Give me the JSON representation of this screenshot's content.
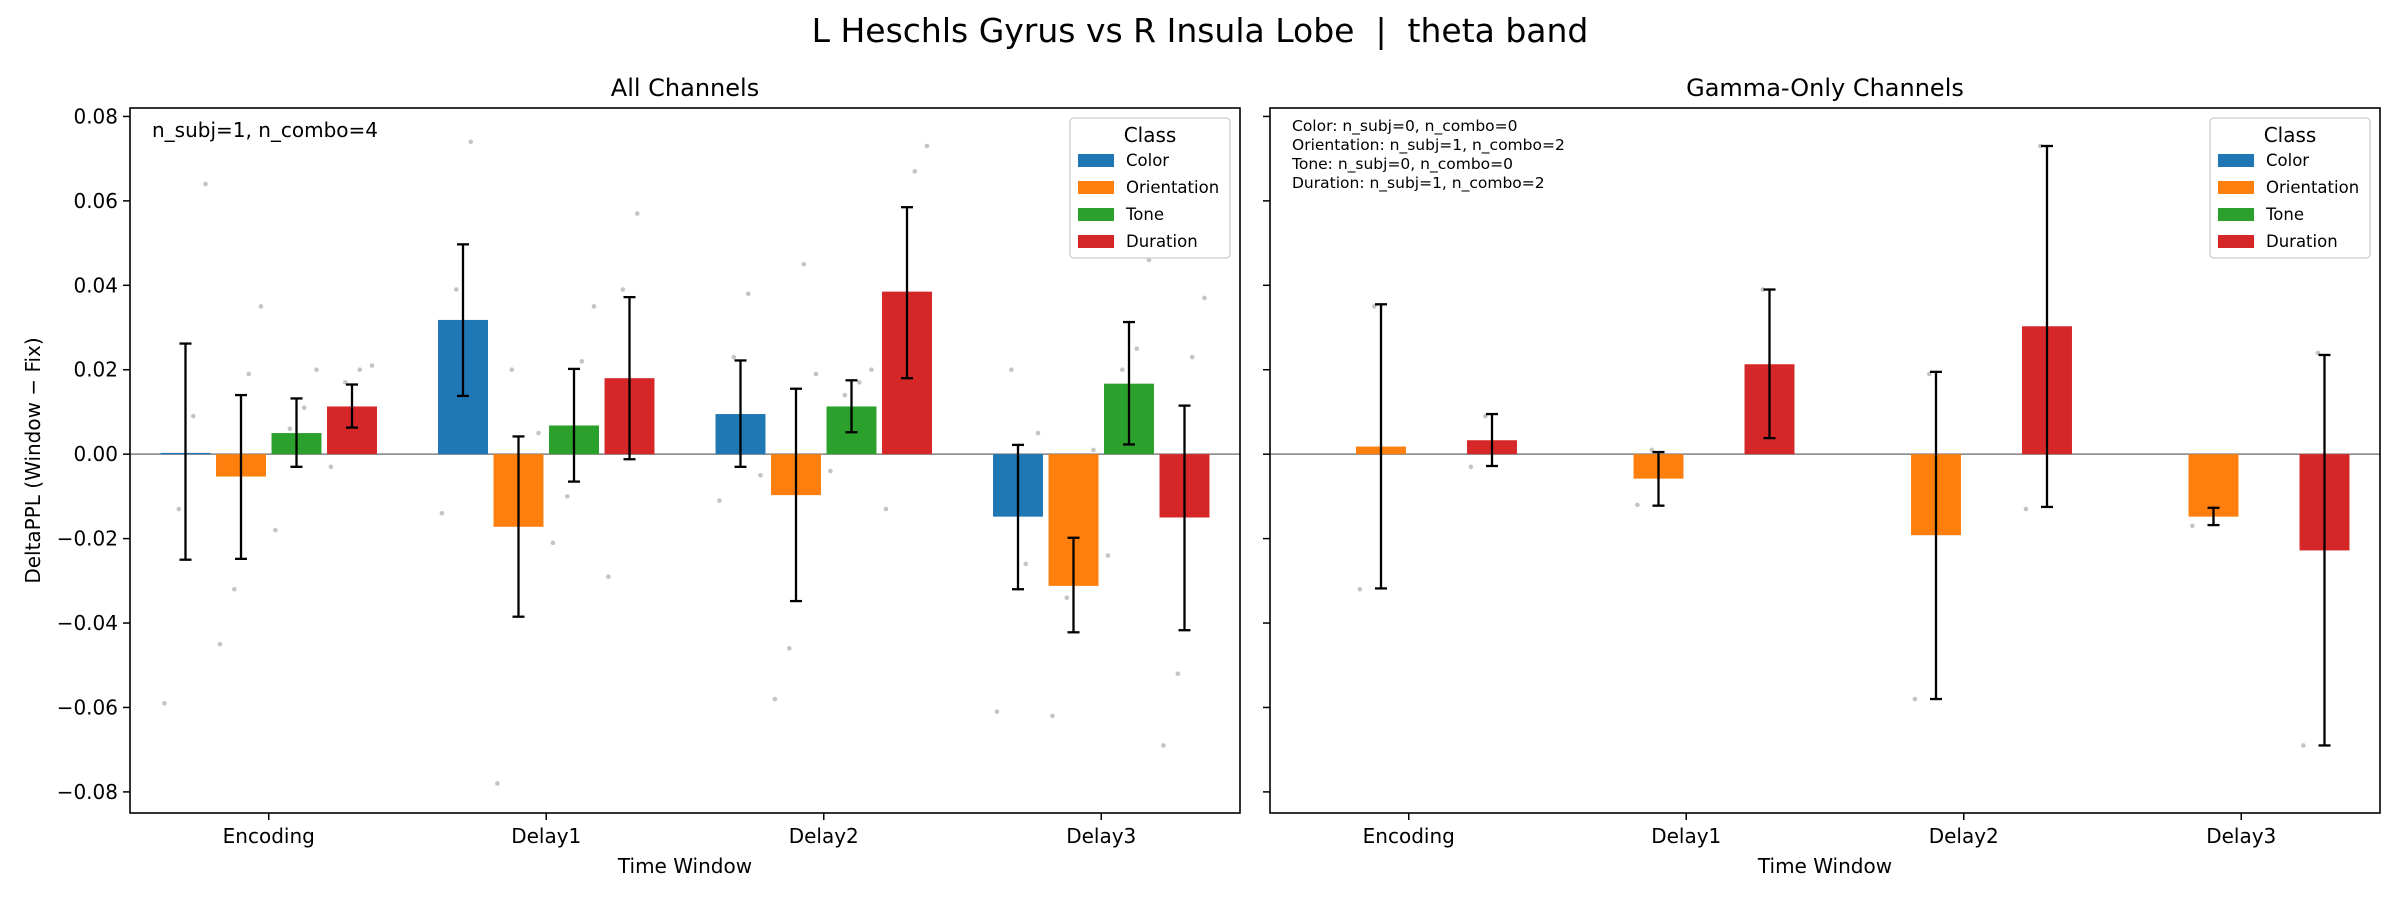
{
  "suptitle": "L Heschls Gyrus vs R Insula Lobe  |  theta band",
  "colors": {
    "Color": "#1f77b4",
    "Orientation": "#ff7f0e",
    "Tone": "#2ca02c",
    "Duration": "#d62728"
  },
  "chart_data": [
    {
      "type": "bar",
      "title": "All Channels",
      "xlabel": "Time Window",
      "ylabel": "DeltaPPL (Window − Fix)",
      "ylim": [
        -0.085,
        0.082
      ],
      "yticks": [
        -0.08,
        -0.06,
        -0.04,
        -0.02,
        0.0,
        0.02,
        0.04,
        0.06,
        0.08
      ],
      "ytick_labels": [
        "−0.08",
        "−0.06",
        "−0.04",
        "−0.02",
        "0.00",
        "0.02",
        "0.04",
        "0.06",
        "0.08"
      ],
      "categories": [
        "Encoding",
        "Delay1",
        "Delay2",
        "Delay3"
      ],
      "annotation": "n_subj=1, n_combo=4",
      "legend": {
        "title": "Class",
        "position": "top-right"
      },
      "series": [
        {
          "name": "Color",
          "values": [
            0.0003,
            0.0318,
            0.0095,
            -0.0148
          ],
          "err_low": [
            -0.025,
            0.0138,
            -0.003,
            -0.032
          ],
          "err_high": [
            0.0262,
            0.0497,
            0.0222,
            0.0022
          ]
        },
        {
          "name": "Orientation",
          "values": [
            -0.0053,
            -0.0172,
            -0.0097,
            -0.0312
          ],
          "err_low": [
            -0.0248,
            -0.0385,
            -0.0348,
            -0.0422
          ],
          "err_high": [
            0.014,
            0.0042,
            0.0155,
            -0.0198
          ]
        },
        {
          "name": "Tone",
          "values": [
            0.005,
            0.0068,
            0.0113,
            0.0167
          ],
          "err_low": [
            -0.003,
            -0.0065,
            0.0052,
            0.0023
          ],
          "err_high": [
            0.0132,
            0.0202,
            0.0175,
            0.0313
          ]
        },
        {
          "name": "Duration",
          "values": [
            0.0113,
            0.018,
            0.0385,
            -0.015
          ],
          "err_low": [
            0.0063,
            -0.0012,
            0.018,
            -0.0417
          ],
          "err_high": [
            0.0165,
            0.0372,
            0.0585,
            0.0115
          ]
        }
      ],
      "points": [
        [
          [
            -0.059,
            -0.013,
            0.009,
            0.064
          ],
          [
            -0.045,
            -0.032,
            0.019,
            0.035
          ],
          [
            -0.018,
            0.006,
            0.011,
            0.02
          ],
          [
            -0.003,
            0.017,
            0.02,
            0.021
          ]
        ],
        [
          [
            -0.014,
            0.039,
            0.074,
            0.028
          ],
          [
            -0.078,
            0.02,
            -0.009,
            0.005
          ],
          [
            -0.021,
            -0.01,
            0.022,
            0.035
          ],
          [
            -0.029,
            0.039,
            0.057,
            0.004
          ]
        ],
        [
          [
            -0.011,
            0.023,
            0.038,
            -0.005
          ],
          [
            -0.058,
            -0.046,
            0.045,
            0.019
          ],
          [
            -0.004,
            0.014,
            0.017,
            0.02
          ],
          [
            -0.013,
            0.024,
            0.067,
            0.073
          ]
        ],
        [
          [
            -0.061,
            0.02,
            -0.026,
            0.005
          ],
          [
            -0.062,
            -0.034,
            -0.028,
            0.001
          ],
          [
            -0.024,
            0.02,
            0.025,
            0.046
          ],
          [
            -0.069,
            -0.052,
            0.023,
            0.037
          ]
        ]
      ]
    },
    {
      "type": "bar",
      "title": "Gamma-Only Channels",
      "xlabel": "Time Window",
      "ylim": [
        -0.085,
        0.082
      ],
      "categories": [
        "Encoding",
        "Delay1",
        "Delay2",
        "Delay3"
      ],
      "annotation_lines": [
        "Color: n_subj=0, n_combo=0",
        "Orientation: n_subj=1, n_combo=2",
        "Tone: n_subj=0, n_combo=0",
        "Duration: n_subj=1, n_combo=2"
      ],
      "legend": {
        "title": "Class",
        "position": "top-right"
      },
      "series": [
        {
          "name": "Color",
          "values": [
            null,
            null,
            null,
            null
          ],
          "err_low": [
            null,
            null,
            null,
            null
          ],
          "err_high": [
            null,
            null,
            null,
            null
          ]
        },
        {
          "name": "Orientation",
          "values": [
            0.0018,
            -0.0058,
            -0.0192,
            -0.0148
          ],
          "err_low": [
            -0.0318,
            -0.0122,
            -0.058,
            -0.0168
          ],
          "err_high": [
            0.0355,
            0.0005,
            0.0195,
            -0.0127
          ]
        },
        {
          "name": "Tone",
          "values": [
            null,
            null,
            null,
            null
          ],
          "err_low": [
            null,
            null,
            null,
            null
          ],
          "err_high": [
            null,
            null,
            null,
            null
          ]
        },
        {
          "name": "Duration",
          "values": [
            0.0033,
            0.0213,
            0.0303,
            -0.0228
          ],
          "err_low": [
            -0.0028,
            0.0038,
            -0.0125,
            -0.069
          ],
          "err_high": [
            0.0095,
            0.039,
            0.073,
            0.0235
          ]
        }
      ],
      "points": [
        [
          [],
          [
            -0.032,
            0.035
          ],
          [],
          [
            -0.003,
            0.009
          ]
        ],
        [
          [],
          [
            -0.012,
            0.001
          ],
          [],
          [
            0.004,
            0.039
          ]
        ],
        [
          [],
          [
            -0.058,
            0.019
          ],
          [],
          [
            -0.013,
            0.073
          ]
        ],
        [
          [],
          [
            -0.017,
            -0.013
          ],
          [],
          [
            -0.069,
            0.024
          ]
        ]
      ]
    }
  ]
}
